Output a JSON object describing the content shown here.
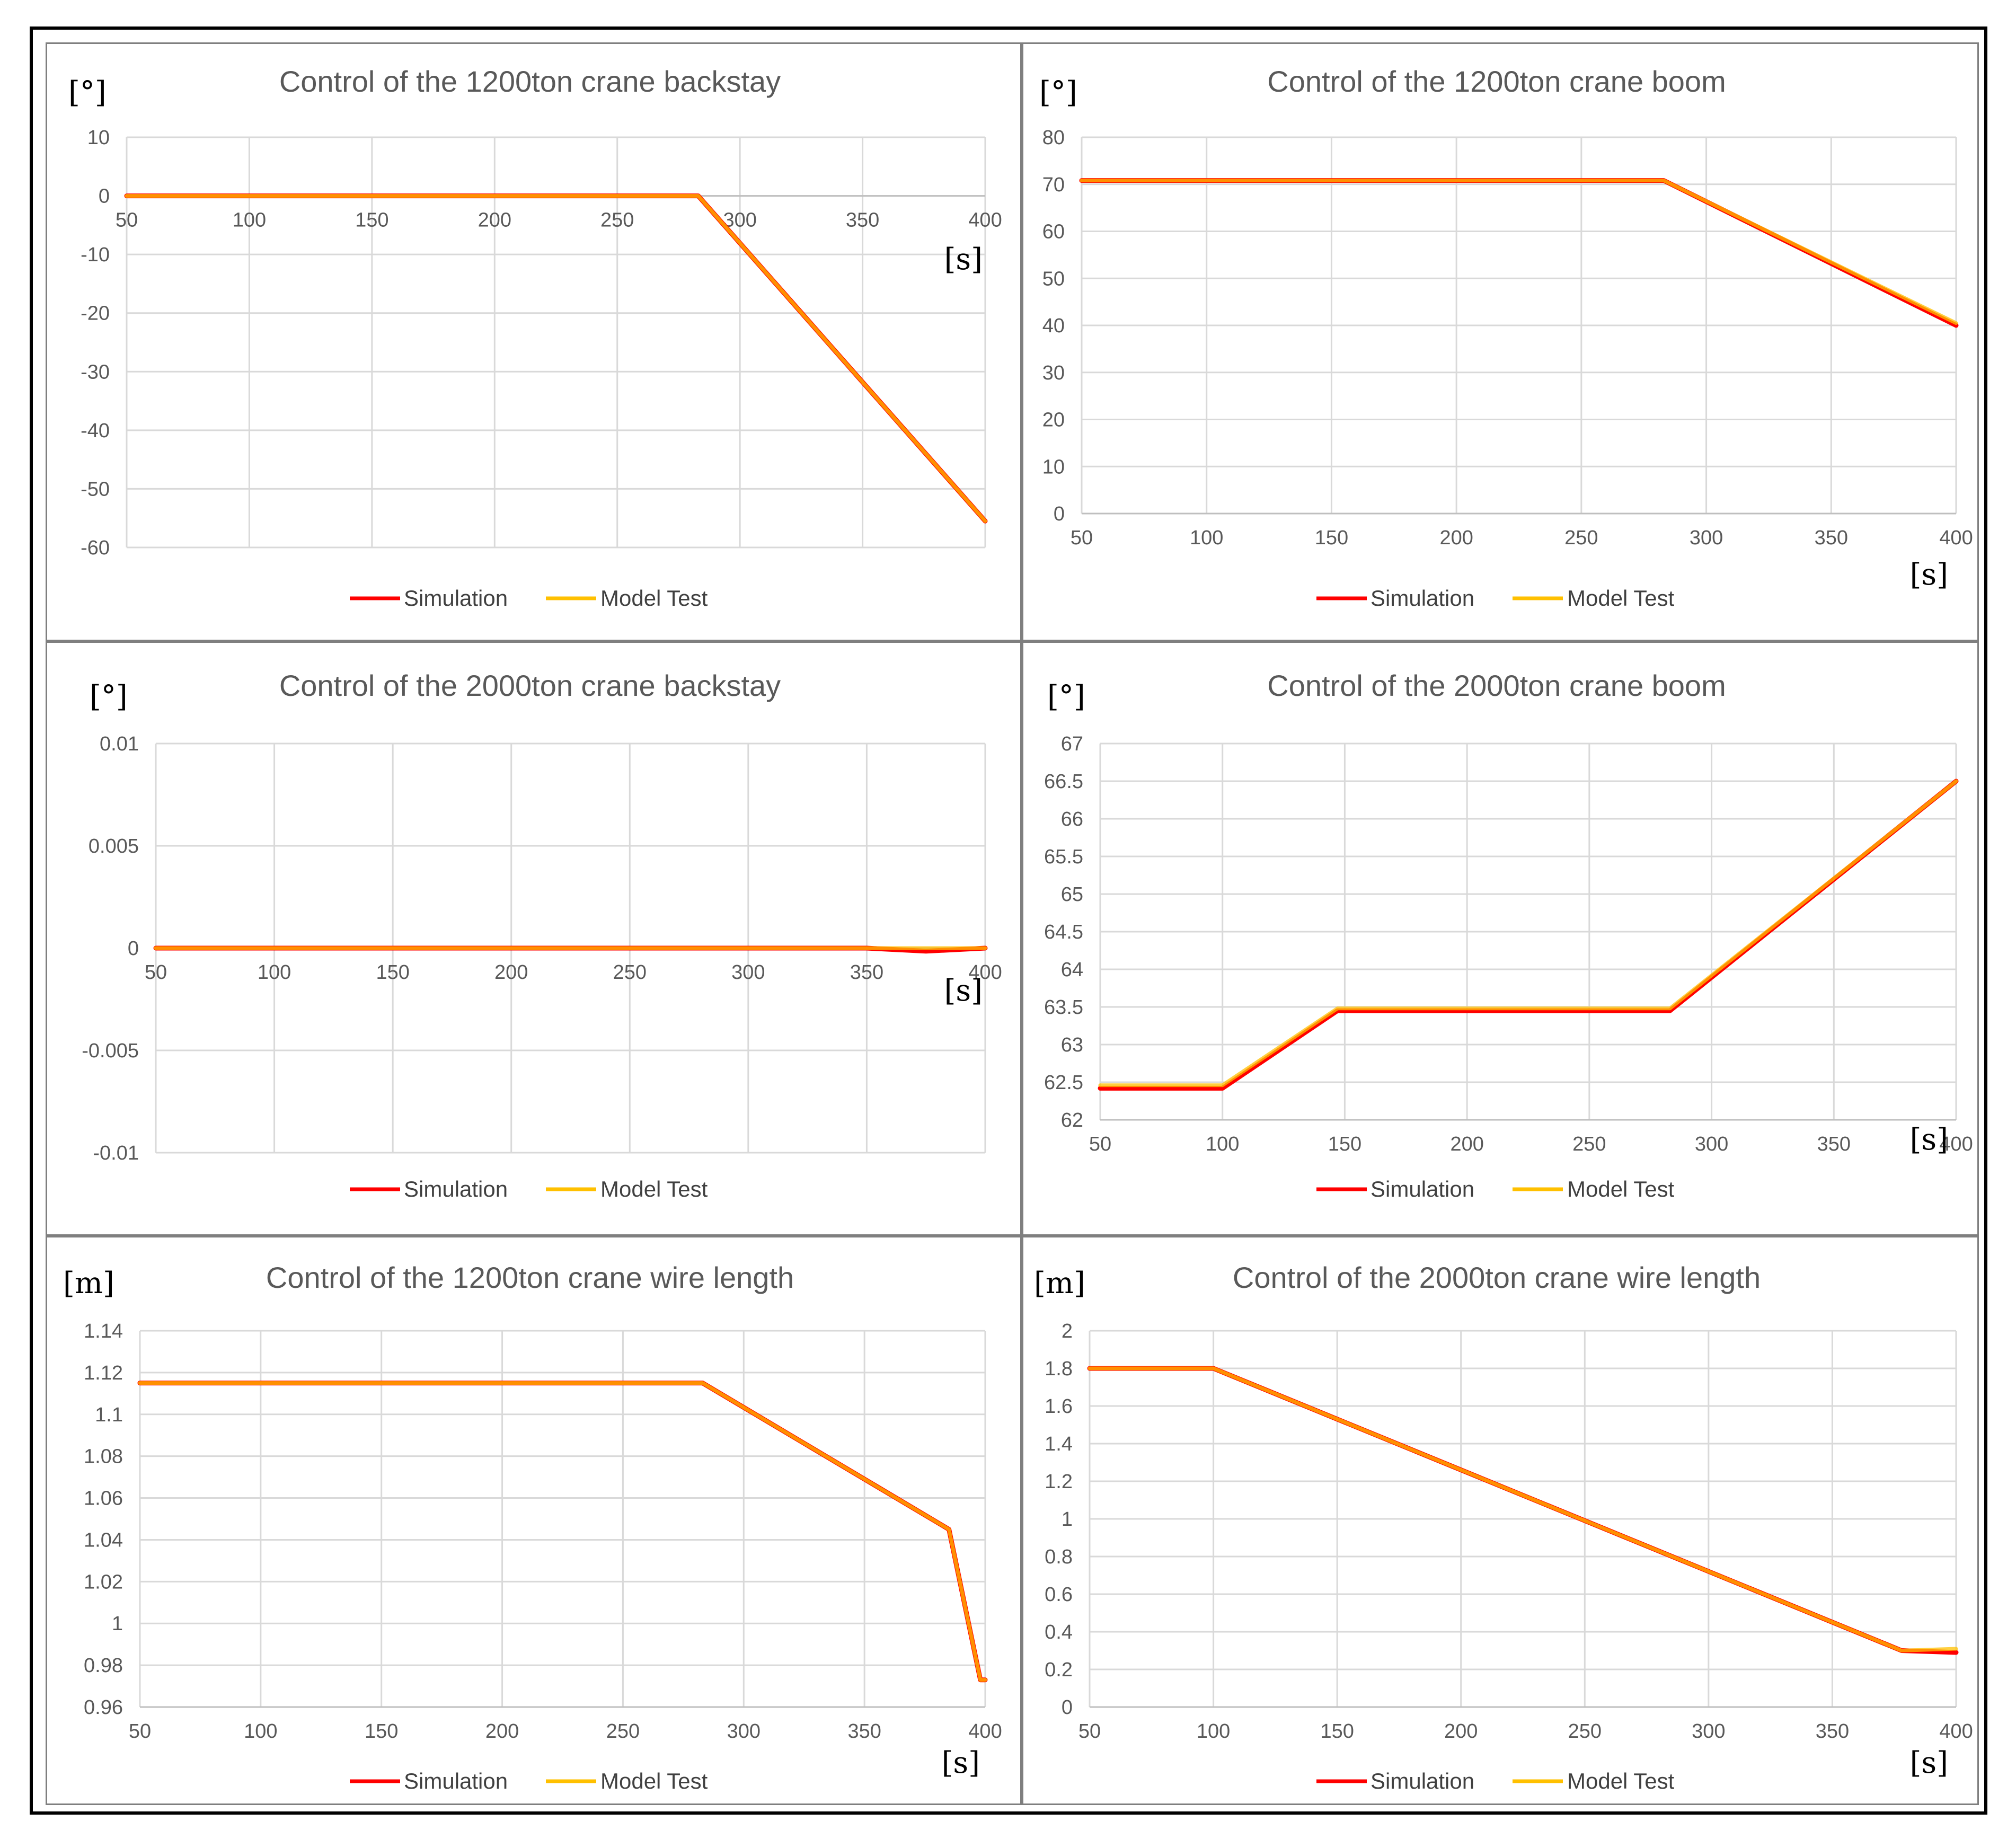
{
  "colors": {
    "simulation": "#ff0000",
    "model_test": "#ffc000",
    "overlay": "#f07800",
    "grid": "#d9d9d9",
    "text": "#595959"
  },
  "legend": {
    "simulation": "Simulation",
    "model_test": "Model Test"
  },
  "chart_data": [
    {
      "type": "line",
      "title": "Control of the 1200ton crane backstay",
      "ylabel": "[°]",
      "xlabel": "[s]",
      "xlim": [
        50,
        400
      ],
      "ylim": [
        -60,
        10
      ],
      "xticks": [
        "50",
        "100",
        "150",
        "200",
        "250",
        "300",
        "350",
        "400"
      ],
      "yticks": [
        "10",
        "0",
        "-10",
        "-20",
        "-30",
        "-40",
        "-50",
        "-60"
      ],
      "x_axis_at_zero": true,
      "series": [
        {
          "name": "Simulation",
          "x": [
            50,
            283,
            400
          ],
          "y": [
            0,
            0,
            -55.5
          ]
        },
        {
          "name": "Model Test",
          "x": [
            50,
            283,
            400
          ],
          "y": [
            0,
            0,
            -55.5
          ]
        }
      ]
    },
    {
      "type": "line",
      "title": "Control of the 1200ton crane boom",
      "ylabel": "[°]",
      "xlabel": "[s]",
      "xlim": [
        50,
        400
      ],
      "ylim": [
        0,
        80
      ],
      "xticks": [
        "50",
        "100",
        "150",
        "200",
        "250",
        "300",
        "350",
        "400"
      ],
      "yticks": [
        "80",
        "70",
        "60",
        "50",
        "40",
        "30",
        "20",
        "10",
        "0"
      ],
      "x_axis_at_zero": false,
      "series": [
        {
          "name": "Simulation",
          "x": [
            50,
            283,
            400
          ],
          "y": [
            70.8,
            70.8,
            40
          ]
        },
        {
          "name": "Model Test",
          "x": [
            50,
            283,
            400
          ],
          "y": [
            70.8,
            70.8,
            40.5
          ]
        }
      ]
    },
    {
      "type": "line",
      "title": "Control of the 2000ton crane backstay",
      "ylabel": "[°]",
      "xlabel": "[s]",
      "xlim": [
        50,
        400
      ],
      "ylim": [
        -0.01,
        0.01
      ],
      "xticks": [
        "50",
        "100",
        "150",
        "200",
        "250",
        "300",
        "350",
        "400"
      ],
      "yticks": [
        "0.01",
        "0.005",
        "0",
        "-0.005",
        "-0.01"
      ],
      "x_axis_at_zero": true,
      "series": [
        {
          "name": "Simulation",
          "x": [
            50,
            350,
            375,
            400
          ],
          "y": [
            0,
            0,
            -0.00015,
            0
          ]
        },
        {
          "name": "Model Test",
          "x": [
            50,
            350,
            400
          ],
          "y": [
            0,
            0,
            0
          ]
        }
      ]
    },
    {
      "type": "line",
      "title": "Control of the 2000ton crane boom",
      "ylabel": "[°]",
      "xlabel": "[s]",
      "xlim": [
        50,
        400
      ],
      "ylim": [
        62,
        67
      ],
      "xticks": [
        "50",
        "100",
        "150",
        "200",
        "250",
        "300",
        "350",
        "400"
      ],
      "yticks": [
        "67",
        "66.5",
        "66",
        "65.5",
        "65",
        "64.5",
        "64",
        "63.5",
        "63",
        "62.5",
        "62"
      ],
      "x_axis_at_zero": false,
      "series": [
        {
          "name": "Simulation",
          "x": [
            50,
            100,
            147,
            283,
            400
          ],
          "y": [
            62.42,
            62.42,
            63.45,
            63.45,
            66.5
          ]
        },
        {
          "name": "Model Test",
          "x": [
            50,
            100,
            147,
            283,
            400
          ],
          "y": [
            62.46,
            62.46,
            63.48,
            63.48,
            66.5
          ]
        }
      ]
    },
    {
      "type": "line",
      "title": "Control of the 1200ton crane wire length",
      "ylabel": "[m]",
      "xlabel": "[s]",
      "xlim": [
        50,
        400
      ],
      "ylim": [
        0.96,
        1.14
      ],
      "xticks": [
        "50",
        "100",
        "150",
        "200",
        "250",
        "300",
        "350",
        "400"
      ],
      "yticks": [
        "1.14",
        "1.12",
        "1.1",
        "1.08",
        "1.06",
        "1.04",
        "1.02",
        "1",
        "0.98",
        "0.96"
      ],
      "x_axis_at_zero": false,
      "series": [
        {
          "name": "Simulation",
          "x": [
            50,
            283,
            385,
            398,
            400
          ],
          "y": [
            1.115,
            1.115,
            1.045,
            0.973,
            0.973
          ]
        },
        {
          "name": "Model Test",
          "x": [
            50,
            283,
            385,
            398,
            400
          ],
          "y": [
            1.115,
            1.115,
            1.045,
            0.973,
            0.973
          ]
        }
      ]
    },
    {
      "type": "line",
      "title": "Control of the 2000ton crane wire length",
      "ylabel": "[m]",
      "xlabel": "[s]",
      "xlim": [
        50,
        400
      ],
      "ylim": [
        0,
        2
      ],
      "xticks": [
        "50",
        "100",
        "150",
        "200",
        "250",
        "300",
        "350",
        "400"
      ],
      "yticks": [
        "2",
        "1.8",
        "1.6",
        "1.4",
        "1.2",
        "1",
        "0.8",
        "0.6",
        "0.4",
        "0.2",
        "0"
      ],
      "x_axis_at_zero": false,
      "series": [
        {
          "name": "Simulation",
          "x": [
            50,
            100,
            378,
            400
          ],
          "y": [
            1.8,
            1.8,
            0.3,
            0.29
          ]
        },
        {
          "name": "Model Test",
          "x": [
            50,
            100,
            378,
            400
          ],
          "y": [
            1.8,
            1.8,
            0.3,
            0.31
          ]
        }
      ]
    }
  ]
}
